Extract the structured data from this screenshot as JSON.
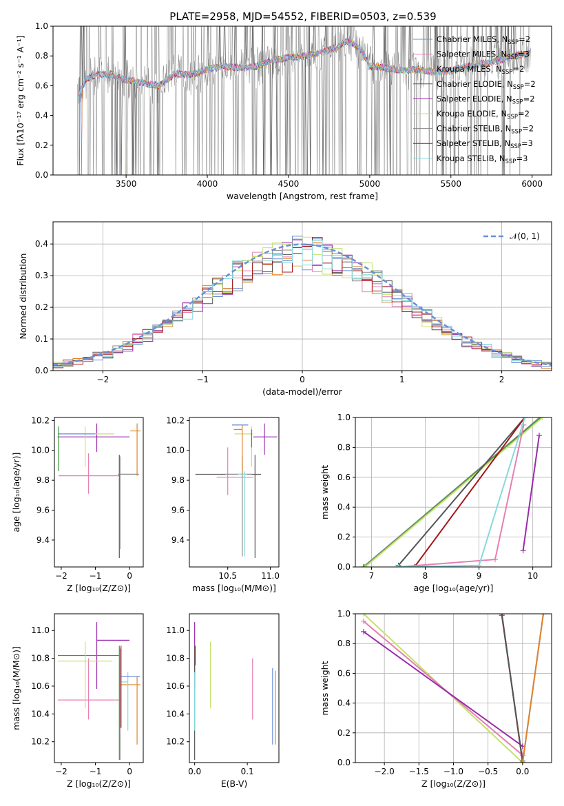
{
  "figure_title": "PLATE=2958, MJD=54552, FIBERID=0503, z=0.539",
  "colors": {
    "blue": "#6a8fd8",
    "pink": "#e57fb4",
    "orange": "#e0832a",
    "darkgray": "#555555",
    "purple": "#9a2aab",
    "lime": "#c5e26a",
    "gray": "#8a8a8a",
    "darkred": "#a4171b",
    "cyan": "#86d9dd",
    "green": "#3a9a3a"
  },
  "chart_data": [
    {
      "id": "spectrum",
      "type": "line",
      "title": "PLATE=2958, MJD=54552, FIBERID=0503, z=0.539",
      "xlabel": "wavelength [Angstrom, rest frame]",
      "ylabel": "Flux [fλ10⁻¹⁷ erg cm⁻² s⁻¹ A⁻¹]",
      "xlim": [
        3050,
        6120
      ],
      "ylim": [
        0,
        1.0
      ],
      "xticks": [
        3500,
        4000,
        4500,
        5000,
        5500,
        6000
      ],
      "yticks": [
        0.0,
        0.2,
        0.4,
        0.6,
        0.8,
        1.0
      ],
      "grid": false,
      "legend_placement": "upper-right",
      "data_range_x": [
        3200,
        5990
      ],
      "continuum": {
        "x": [
          3200,
          3250,
          3300,
          3400,
          3500,
          3600,
          3700,
          3800,
          3900,
          4000,
          4100,
          4200,
          4300,
          4400,
          4500,
          4600,
          4700,
          4800,
          4850,
          4900,
          4950,
          5000,
          5100,
          5200,
          5300,
          5400,
          5500,
          5600,
          5700,
          5800,
          5900,
          5990
        ],
        "y": [
          0.52,
          0.64,
          0.67,
          0.68,
          0.64,
          0.62,
          0.6,
          0.68,
          0.67,
          0.71,
          0.73,
          0.72,
          0.73,
          0.77,
          0.79,
          0.8,
          0.82,
          0.86,
          0.9,
          0.88,
          0.84,
          0.73,
          0.72,
          0.7,
          0.71,
          0.69,
          0.7,
          0.73,
          0.75,
          0.77,
          0.8,
          0.82
        ]
      },
      "series": [
        {
          "name": "Chabrier MILES, N_SSP=2",
          "label_main": "Chabrier MILES, N",
          "label_sub": "SSP",
          "label_tail": "=2",
          "color": "#6a8fd8"
        },
        {
          "name": "Salpeter MILES, N_SSP=3",
          "label_main": "Salpeter MILES, N",
          "label_sub": "SSP",
          "label_tail": "=3",
          "color": "#e57fb4"
        },
        {
          "name": "Kroupa MILES, N_SSP=2",
          "label_main": "Kroupa MILES, N",
          "label_sub": "SSP",
          "label_tail": "=2",
          "color": "#e0832a"
        },
        {
          "name": "Chabrier ELODIE, N_SSP=2",
          "label_main": "Chabrier ELODIE, N",
          "label_sub": "SSP",
          "label_tail": "=2",
          "color": "#555555"
        },
        {
          "name": "Salpeter ELODIE, N_SSP=2",
          "label_main": "Salpeter ELODIE, N",
          "label_sub": "SSP",
          "label_tail": "=2",
          "color": "#9a2aab"
        },
        {
          "name": "Kroupa ELODIE, N_SSP=2",
          "label_main": "Kroupa ELODIE, N",
          "label_sub": "SSP",
          "label_tail": "=2",
          "color": "#c5e26a"
        },
        {
          "name": "Chabrier STELIB, N_SSP=2",
          "label_main": "Chabrier STELIB, N",
          "label_sub": "SSP",
          "label_tail": "=2",
          "color": "#8a8a8a"
        },
        {
          "name": "Salpeter STELIB, N_SSP=3",
          "label_main": "Salpeter STELIB, N",
          "label_sub": "SSP",
          "label_tail": "=3",
          "color": "#a4171b"
        },
        {
          "name": "Kroupa STELIB, N_SSP=3",
          "label_main": "Kroupa STELIB, N",
          "label_sub": "SSP",
          "label_tail": "=3",
          "color": "#86d9dd"
        }
      ]
    },
    {
      "id": "residuals",
      "type": "histogram",
      "xlabel": "(data-model)/error",
      "ylabel": "Normed distribution",
      "xlim": [
        -2.5,
        2.5
      ],
      "ylim": [
        0,
        0.47
      ],
      "xticks": [
        -2,
        -1,
        0,
        1,
        2
      ],
      "yticks": [
        0.0,
        0.1,
        0.2,
        0.3,
        0.4
      ],
      "grid": true,
      "legend_placement": "upper-right",
      "reference_curve": {
        "name": "N(0,1)",
        "label": "𝒩(0, 1)",
        "mean": 0,
        "sigma": 1,
        "color": "#6a8fd8"
      },
      "bin_width": 0.1,
      "bin_start": -2.5,
      "series_colors": [
        "#6a8fd8",
        "#e57fb4",
        "#e0832a",
        "#555555",
        "#9a2aab",
        "#c5e26a",
        "#8a8a8a",
        "#a4171b",
        "#86d9dd"
      ]
    },
    {
      "id": "age-vs-Z",
      "type": "errorbar",
      "xlabel": "Z [log₁₀(Z/Z⊙)]",
      "ylabel": "age  [log₁₀(age/yr)]",
      "xlim": [
        -2.2,
        0.4
      ],
      "ylim": [
        9.22,
        10.22
      ],
      "xticks": [
        -2,
        -1,
        0
      ],
      "yticks": [
        9.4,
        9.6,
        9.8,
        10.0,
        10.2
      ],
      "grid": false,
      "points": [
        {
          "x": -0.96,
          "xerr": [
            1.15,
            0.96
          ],
          "y": 10.09,
          "yerr": [
            0.1,
            0.09
          ],
          "color": "#9a2aab"
        },
        {
          "x": -1.2,
          "xerr": [
            0.88,
            0.92
          ],
          "y": 9.83,
          "yerr": [
            0.12,
            0.15
          ],
          "color": "#e57fb4"
        },
        {
          "x": -0.3,
          "xerr": [
            0.03,
            0.55
          ],
          "y": 9.84,
          "yerr": [
            0.56,
            0.13
          ],
          "color": "#555555"
        },
        {
          "x": -0.28,
          "xerr": [
            0.02,
            0.56
          ],
          "y": 9.84,
          "yerr": [
            0.5,
            0.12
          ],
          "color": "#8a8a8a"
        },
        {
          "x": -1.3,
          "xerr": [
            0.8,
            0.85
          ],
          "y": 10.11,
          "yerr": [
            0.22,
            0.05
          ],
          "color": "#c5e26a"
        },
        {
          "x": 0.22,
          "xerr": [
            0.2,
            0.1
          ],
          "y": 10.13,
          "yerr": [
            0.3,
            0.05
          ],
          "color": "#e0832a"
        },
        {
          "x": -1.05,
          "xerr": [
            1.05,
            0.05
          ],
          "y": 10.11,
          "yerr": [
            0.0,
            0.0
          ],
          "color": "#6a8fd8"
        },
        {
          "x": -2.08,
          "xerr": [
            0.0,
            0.0
          ],
          "y": 10.06,
          "yerr": [
            0.2,
            0.1
          ],
          "color": "#3a9a3a"
        }
      ]
    },
    {
      "id": "age-vs-mass",
      "type": "errorbar",
      "xlabel": "mass [log₁₀(M/M⊙)]",
      "ylabel": "",
      "xlim": [
        10.05,
        11.1
      ],
      "ylim": [
        9.22,
        10.22
      ],
      "xticks": [
        10.5,
        11.0
      ],
      "yticks": [
        9.4,
        9.6,
        9.8,
        10.0,
        10.2
      ],
      "grid": false,
      "points": [
        {
          "x": 10.93,
          "xerr": [
            0.13,
            0.15
          ],
          "y": 10.09,
          "yerr": [
            0.12,
            0.09
          ],
          "color": "#9a2aab"
        },
        {
          "x": 10.5,
          "xerr": [
            0.13,
            0.3
          ],
          "y": 9.82,
          "yerr": [
            0.12,
            0.2
          ],
          "color": "#e57fb4"
        },
        {
          "x": 10.82,
          "xerr": [
            0.7,
            0.07
          ],
          "y": 9.84,
          "yerr": [
            0.56,
            0.13
          ],
          "color": "#555555"
        },
        {
          "x": 10.67,
          "xerr": [
            0.2,
            0.11
          ],
          "y": 9.84,
          "yerr": [
            0.55,
            0.12
          ],
          "color": "#8a8a8a"
        },
        {
          "x": 10.7,
          "xerr": [
            0.08,
            0.02
          ],
          "y": 9.84,
          "yerr": [
            0.55,
            0.02
          ],
          "color": "#86d9dd"
        },
        {
          "x": 10.78,
          "xerr": [
            0.2,
            0.02
          ],
          "y": 10.11,
          "yerr": [
            0.22,
            0.05
          ],
          "color": "#c5e26a"
        },
        {
          "x": 10.67,
          "xerr": [
            0.1,
            0.0
          ],
          "y": 10.14,
          "yerr": [
            0.3,
            0.03
          ],
          "color": "#e0832a"
        },
        {
          "x": 10.62,
          "xerr": [
            0.07,
            0.12
          ],
          "y": 10.17,
          "yerr": [
            0.0,
            0.0
          ],
          "color": "#6a8fd8"
        },
        {
          "x": 10.78,
          "xerr": [
            0.0,
            0.0
          ],
          "y": 10.07,
          "yerr": [
            0.05,
            0.07
          ],
          "color": "#3a9a3a"
        }
      ]
    },
    {
      "id": "cumulative-age",
      "type": "line",
      "xlabel": "age  [log₁₀(age/yr)]",
      "ylabel": "mass weight",
      "xlim": [
        6.7,
        10.35
      ],
      "ylim": [
        0,
        1.0
      ],
      "xticks": [
        7,
        8,
        9,
        10
      ],
      "yticks": [
        0.0,
        0.2,
        0.4,
        0.6,
        0.8,
        1.0
      ],
      "grid": true,
      "series": [
        {
          "color": "#e0832a",
          "x": [
            6.85,
            10.15
          ],
          "y": [
            0.0,
            1.0
          ]
        },
        {
          "color": "#8a8a8a",
          "x": [
            6.85,
            10.13
          ],
          "y": [
            0.0,
            1.0
          ]
        },
        {
          "color": "#3a9a3a",
          "x": [
            6.87,
            10.15
          ],
          "y": [
            0.0,
            1.0
          ]
        },
        {
          "color": "#c5e26a",
          "x": [
            6.88,
            10.18
          ],
          "y": [
            0.0,
            1.0
          ]
        },
        {
          "color": "#555555",
          "x": [
            7.5,
            9.85
          ],
          "y": [
            0.01,
            1.0
          ]
        },
        {
          "color": "#a4171b",
          "x": [
            7.8,
            9.85
          ],
          "y": [
            0.0,
            1.0
          ]
        },
        {
          "color": "#e57fb4",
          "x": [
            7.5,
            9.3,
            9.83
          ],
          "y": [
            0.0,
            0.05,
            0.95
          ]
        },
        {
          "color": "#86d9dd",
          "x": [
            7.5,
            9.0,
            9.85
          ],
          "y": [
            0.0,
            0.01,
            1.0
          ]
        },
        {
          "color": "#9a2aab",
          "x": [
            9.82,
            10.12
          ],
          "y": [
            0.11,
            0.88
          ]
        }
      ]
    },
    {
      "id": "mass-vs-Z",
      "type": "errorbar",
      "xlabel": "Z [log₁₀(Z/Z⊙)]",
      "ylabel": "mass [log₁₀(M/M⊙)]",
      "xlim": [
        -2.2,
        0.4
      ],
      "ylim": [
        10.05,
        11.12
      ],
      "xticks": [
        -2,
        -1,
        0
      ],
      "yticks": [
        10.2,
        10.4,
        10.6,
        10.8,
        11.0
      ],
      "grid": false,
      "points": [
        {
          "x": -0.96,
          "xerr": [
            0.0,
            0.96
          ],
          "y": 10.93,
          "yerr": [
            0.35,
            0.13
          ],
          "color": "#9a2aab"
        },
        {
          "x": -1.2,
          "xerr": [
            0.9,
            0.95
          ],
          "y": 10.5,
          "yerr": [
            0.14,
            0.3
          ],
          "color": "#e57fb4"
        },
        {
          "x": -0.3,
          "xerr": [
            1.8,
            0.0
          ],
          "y": 10.82,
          "yerr": [
            0.75,
            0.07
          ],
          "color": "#3a9a3a"
        },
        {
          "x": -0.28,
          "xerr": [
            0.0,
            0.0
          ],
          "y": 10.67,
          "yerr": [
            0.6,
            0.2
          ],
          "color": "#8a8a8a"
        },
        {
          "x": -1.3,
          "xerr": [
            0.8,
            0.8
          ],
          "y": 10.78,
          "yerr": [
            0.34,
            0.14
          ],
          "color": "#c5e26a"
        },
        {
          "x": 0.22,
          "xerr": [
            0.5,
            0.1
          ],
          "y": 10.61,
          "yerr": [
            0.43,
            0.06
          ],
          "color": "#e0832a"
        },
        {
          "x": -0.05,
          "xerr": [
            0.2,
            0.0
          ],
          "y": 10.63,
          "yerr": [
            0.35,
            0.07
          ],
          "color": "#86d9dd"
        },
        {
          "x": 0.0,
          "xerr": [
            0.25,
            0.3
          ],
          "y": 10.67,
          "yerr": [
            0.0,
            0.0
          ],
          "color": "#6a8fd8"
        },
        {
          "x": -0.25,
          "xerr": [
            0.0,
            0.0
          ],
          "y": 10.8,
          "yerr": [
            0.5,
            0.09
          ],
          "color": "#a4171b"
        }
      ]
    },
    {
      "id": "mass-vs-EBV",
      "type": "errorbar",
      "xlabel": "E(B-V)",
      "ylabel": "",
      "xlim": [
        -0.01,
        0.16
      ],
      "ylim": [
        10.05,
        11.12
      ],
      "xticks": [
        0.0,
        0.1
      ],
      "yticks": [
        10.2,
        10.4,
        10.6,
        10.8,
        11.0
      ],
      "grid": false,
      "points": [
        {
          "x": 0.0,
          "y": 10.93,
          "yerr": [
            0.35,
            0.13
          ],
          "color": "#9a2aab"
        },
        {
          "x": 0.11,
          "y": 10.5,
          "yerr": [
            0.14,
            0.3
          ],
          "color": "#e57fb4"
        },
        {
          "x": 0.0,
          "y": 10.82,
          "yerr": [
            0.75,
            0.07
          ],
          "color": "#555555"
        },
        {
          "x": 0.03,
          "y": 10.78,
          "yerr": [
            0.34,
            0.14
          ],
          "color": "#c5e26a"
        },
        {
          "x": 0.153,
          "y": 10.45,
          "yerr": [
            0.27,
            0.26
          ],
          "color": "#e0832a"
        },
        {
          "x": 0.148,
          "y": 10.45,
          "yerr": [
            0.27,
            0.28
          ],
          "color": "#6a8fd8"
        },
        {
          "x": 0.0,
          "y": 10.63,
          "yerr": [
            0.35,
            0.07
          ],
          "color": "#86d9dd"
        },
        {
          "x": 0.001,
          "y": 10.75,
          "yerr": [
            0.0,
            0.14
          ],
          "color": "#a4171b"
        }
      ]
    },
    {
      "id": "cumulative-Z",
      "type": "line",
      "xlabel": "Z [log₁₀(Z/Z⊙)]",
      "ylabel": "mass weight",
      "xlim": [
        -2.42,
        0.42
      ],
      "ylim": [
        0,
        1.0
      ],
      "xticks": [
        -2.0,
        -1.5,
        -1.0,
        -0.5,
        0.0
      ],
      "yticks": [
        0.0,
        0.2,
        0.4,
        0.6,
        0.8,
        1.0
      ],
      "grid": true,
      "series": [
        {
          "color": "#c5e26a",
          "x": [
            -2.3,
            0.0
          ],
          "y": [
            1.0,
            0.0
          ]
        },
        {
          "color": "#e57fb4",
          "x": [
            -2.3,
            0.0
          ],
          "y": [
            0.95,
            0.05
          ]
        },
        {
          "color": "#9a2aab",
          "x": [
            -2.3,
            0.0
          ],
          "y": [
            0.88,
            0.11
          ]
        },
        {
          "color": "#86d9dd",
          "x": [
            -0.3,
            0.0
          ],
          "y": [
            0.99,
            0.0
          ]
        },
        {
          "color": "#a4171b",
          "x": [
            -0.3,
            0.0
          ],
          "y": [
            1.0,
            0.0
          ]
        },
        {
          "color": "#555555",
          "x": [
            -0.3,
            0.0
          ],
          "y": [
            0.99,
            0.01
          ]
        },
        {
          "color": "#6a8fd8",
          "x": [
            0.0,
            0.3
          ],
          "y": [
            0.0,
            1.0
          ]
        },
        {
          "color": "#e0832a",
          "x": [
            0.0,
            0.3
          ],
          "y": [
            0.0,
            1.0
          ]
        }
      ]
    }
  ]
}
